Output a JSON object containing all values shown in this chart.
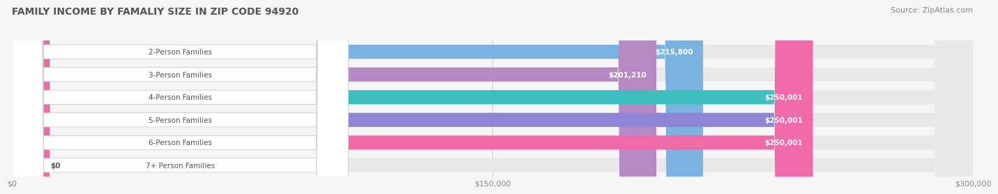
{
  "title": "FAMILY INCOME BY FAMALIY SIZE IN ZIP CODE 94920",
  "source": "Source: ZipAtlas.com",
  "categories": [
    "2-Person Families",
    "3-Person Families",
    "4-Person Families",
    "5-Person Families",
    "6-Person Families",
    "7+ Person Families"
  ],
  "values": [
    215800,
    201210,
    250001,
    250001,
    250001,
    0
  ],
  "max_value": 300000,
  "bar_colors": [
    "#7ab3e0",
    "#b589c4",
    "#3dbfbf",
    "#8e85d4",
    "#f06aaa",
    "#f5c99a"
  ],
  "bar_bg_color": "#e8e8e8",
  "value_labels": [
    "$215,800",
    "$201,210",
    "$250,001",
    "$250,001",
    "$250,001",
    "$0"
  ],
  "x_ticks": [
    0,
    150000,
    300000
  ],
  "x_tick_labels": [
    "$0",
    "$150,000",
    "$300,000"
  ],
  "background_color": "#f5f5f5",
  "label_color": "#555555",
  "value_label_color": "#ffffff",
  "title_color": "#555555",
  "source_color": "#888888"
}
